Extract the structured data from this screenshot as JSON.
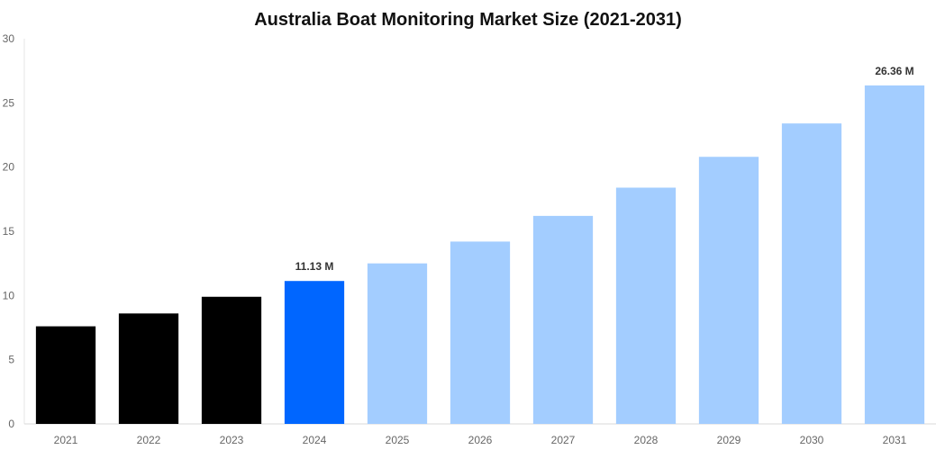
{
  "chart_data": {
    "type": "bar",
    "title": "Australia Boat Monitoring Market Size (2021-2031)",
    "xlabel": "",
    "ylabel": "",
    "categories": [
      "2021",
      "2022",
      "2023",
      "2024",
      "2025",
      "2026",
      "2027",
      "2028",
      "2029",
      "2030",
      "2031"
    ],
    "values": [
      7.6,
      8.6,
      9.9,
      11.13,
      12.5,
      14.2,
      16.2,
      18.4,
      20.8,
      23.4,
      26.36
    ],
    "bar_colors": [
      "#000000",
      "#000000",
      "#000000",
      "#0066ff",
      "#a3cdff",
      "#a3cdff",
      "#a3cdff",
      "#a3cdff",
      "#a3cdff",
      "#a3cdff",
      "#a3cdff"
    ],
    "data_labels": [
      {
        "index": 3,
        "text": "11.13 M"
      },
      {
        "index": 10,
        "text": "26.36 M"
      }
    ],
    "ylim": [
      0,
      30
    ],
    "yticks": [
      "0",
      "5",
      "10",
      "15",
      "20",
      "25",
      "30"
    ],
    "grid": false,
    "legend": "none"
  }
}
